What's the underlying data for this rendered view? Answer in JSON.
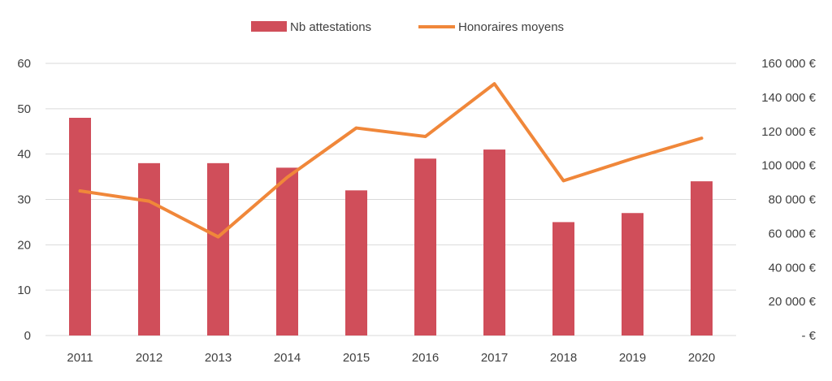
{
  "chart_data": {
    "type": "bar",
    "categories": [
      "2011",
      "2012",
      "2013",
      "2014",
      "2015",
      "2016",
      "2017",
      "2018",
      "2019",
      "2020"
    ],
    "series": [
      {
        "name": "Nb attestations",
        "type": "bar",
        "axis": "left",
        "color": "#D04E5A",
        "values": [
          48,
          38,
          38,
          37,
          32,
          39,
          41,
          25,
          27,
          34
        ]
      },
      {
        "name": "Honoraires moyens",
        "type": "line",
        "axis": "right",
        "color": "#F0873A",
        "values": [
          85000,
          79000,
          58000,
          93000,
          122000,
          117000,
          148000,
          91000,
          104000,
          116000
        ]
      }
    ],
    "y_left": {
      "lim": [
        0,
        60
      ],
      "ticks": [
        "0",
        "10",
        "20",
        "30",
        "40",
        "50",
        "60"
      ]
    },
    "y_right": {
      "lim": [
        0,
        160000
      ],
      "ticks": [
        "-   €",
        "20 000 €",
        "40 000 €",
        "60 000 €",
        "80 000 €",
        "100 000 €",
        "120 000 €",
        "140 000 €",
        "160 000 €"
      ]
    },
    "legend_position": "top-center",
    "grid": true,
    "colors": {
      "grid": "#D9D9D9",
      "text": "#404040"
    }
  }
}
